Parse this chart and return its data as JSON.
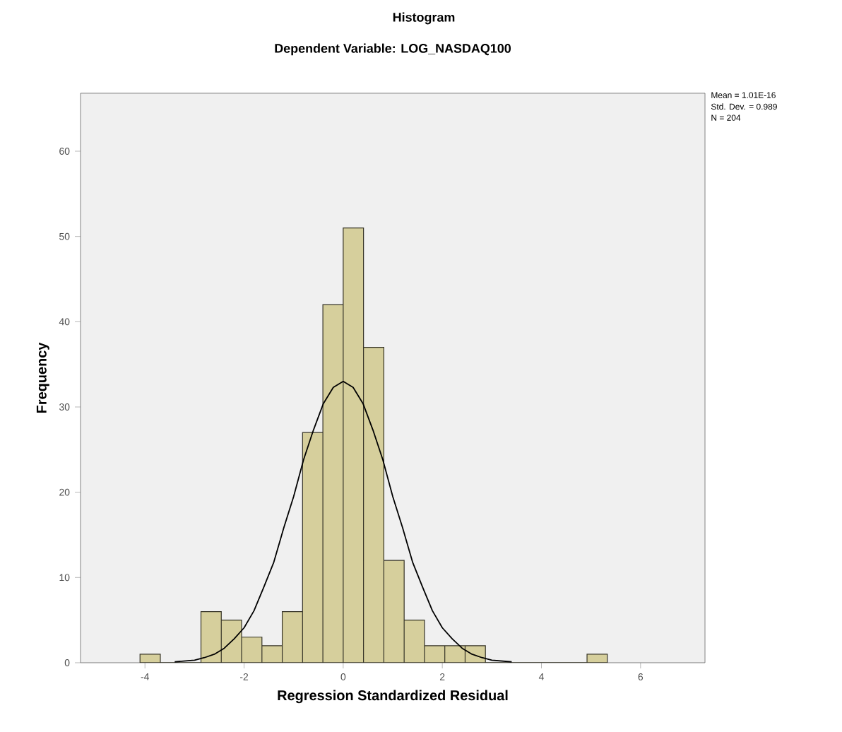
{
  "chart_data": {
    "type": "histogram",
    "title": "Histogram",
    "subtitle": "Dependent Variable: LOG_NASDAQ100",
    "xlabel": "Regression Standardized Residual",
    "ylabel": "Frequency",
    "bins": [
      -4.1,
      -3.69,
      -3.28,
      -2.87,
      -2.46,
      -2.05,
      -1.64,
      -1.23,
      -0.82,
      -0.41,
      0,
      0.41,
      0.82,
      1.23,
      1.64,
      2.05,
      2.46,
      2.87,
      3.28,
      3.69,
      4.1,
      4.51,
      4.92,
      5.33
    ],
    "values": [
      1,
      0,
      0,
      6,
      5,
      3,
      2,
      6,
      27,
      42,
      51,
      37,
      12,
      5,
      2,
      2,
      2,
      0,
      0,
      0,
      0,
      0,
      1
    ],
    "color": "#d6cf9c",
    "series": [
      {
        "type": "line",
        "color": "#000000",
        "x": [
          -3.4,
          -3.0,
          -2.8,
          -2.6,
          -2.4,
          -2.2,
          -2.0,
          -1.8,
          -1.6,
          -1.4,
          -1.2,
          -1.0,
          -0.8,
          -0.6,
          -0.4,
          -0.2,
          0,
          0.2,
          0.4,
          0.6,
          0.8,
          1.0,
          1.2,
          1.4,
          1.6,
          1.8,
          2.0,
          2.2,
          2.4,
          2.6,
          2.8,
          3.0,
          3.4
        ],
        "values": [
          0.1,
          0.3,
          0.6,
          1.0,
          1.7,
          2.8,
          4.1,
          6.1,
          8.9,
          11.8,
          15.8,
          19.5,
          23.8,
          27.3,
          30.4,
          32.3,
          33,
          32.3,
          30.4,
          27.3,
          23.8,
          19.5,
          15.8,
          11.8,
          8.9,
          6.1,
          4.1,
          2.8,
          1.7,
          1.0,
          0.6,
          0.3,
          0.1
        ]
      }
    ],
    "xlim": [
      -5.3,
      7.3
    ],
    "ylim": [
      0,
      66.8
    ],
    "xticks": [
      -4,
      -2,
      0,
      2,
      4,
      6
    ],
    "yticks": [
      0,
      10,
      20,
      30,
      40,
      50,
      60
    ],
    "grid": false,
    "annotations": [
      "Mean = 1.01E-16",
      "Std. Dev. = 0.989",
      "N = 204"
    ]
  }
}
